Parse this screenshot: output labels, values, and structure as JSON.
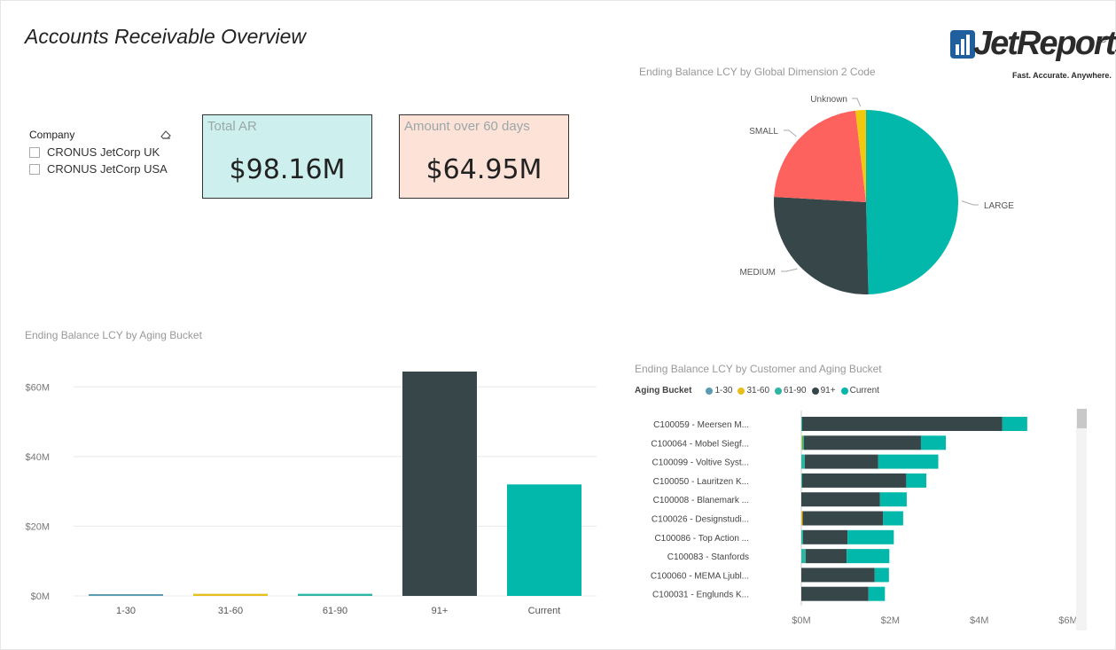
{
  "page": {
    "title": "Accounts Receivable Overview"
  },
  "logo": {
    "name": "JetReports",
    "tagline": "Fast. Accurate. Anywhere.",
    "reg": "®"
  },
  "slicer": {
    "title": "Company",
    "items": [
      "CRONUS JetCorp UK",
      "CRONUS JetCorp USA"
    ]
  },
  "cards": [
    {
      "label": "Total AR",
      "value": "$98.16M",
      "color": "#cdf0ee"
    },
    {
      "label": "Amount over 60 days",
      "value": "$64.95M",
      "color": "#fde2d7"
    }
  ],
  "colors": {
    "b1_30": "#5b9bb3",
    "b31_60": "#e6be1e",
    "b61_90": "#2fb5a4",
    "b91": "#374649",
    "current": "#01b8aa",
    "small": "#fd625e"
  },
  "chart_data": [
    {
      "type": "pie",
      "title": "Ending Balance LCY by Global Dimension 2 Code",
      "slices": [
        {
          "label": "LARGE",
          "value": 48.6,
          "color": "#01b8aa"
        },
        {
          "label": "MEDIUM",
          "value": 25.8,
          "color": "#374649"
        },
        {
          "label": "SMALL",
          "value": 21.8,
          "color": "#fd625e"
        },
        {
          "label": "Unknown",
          "value": 1.8,
          "color": "#f2c80f"
        }
      ]
    },
    {
      "type": "bar",
      "title": "Ending Balance LCY by Aging Bucket",
      "categories": [
        "1-30",
        "31-60",
        "61-90",
        "91+",
        "Current"
      ],
      "values": [
        0.5,
        0.6,
        0.6,
        64.4,
        32.0
      ],
      "colors": [
        "#5b9bb3",
        "#e6be1e",
        "#2fb5a4",
        "#374649",
        "#01b8aa"
      ],
      "yticks": [
        "$0M",
        "$20M",
        "$40M",
        "$60M"
      ],
      "ylim": [
        0,
        70
      ],
      "grid": true
    },
    {
      "type": "bar",
      "orientation": "horizontal",
      "stacked": true,
      "title": "Ending Balance LCY by Customer and Aging Bucket",
      "legend_title": "Aging Bucket",
      "series_names": [
        "1-30",
        "31-60",
        "61-90",
        "91+",
        "Current"
      ],
      "series_colors": [
        "#5b9bb3",
        "#e6be1e",
        "#2fb5a4",
        "#374649",
        "#01b8aa"
      ],
      "categories": [
        "C100059 - Meersen M...",
        "C100064 - Mobel Siegf...",
        "C100099 - Voltive Syst...",
        "C100050 - Lauritzen K...",
        "C100008 - Blanemark ...",
        "C100026 - Designstudi...",
        "C100086 - Top Action ...",
        "C100083 - Stanfords",
        "C100060 - MEMA Ljubl...",
        "C100031 - Englunds K..."
      ],
      "rows": [
        [
          0.0,
          0.0,
          0.02,
          4.5,
          0.56
        ],
        [
          0.0,
          0.02,
          0.04,
          2.63,
          0.56
        ],
        [
          0.0,
          0.0,
          0.08,
          1.65,
          1.35
        ],
        [
          0.0,
          0.0,
          0.02,
          2.34,
          0.45
        ],
        [
          0.0,
          0.0,
          0.0,
          1.77,
          0.6
        ],
        [
          0.0,
          0.03,
          0.0,
          1.81,
          0.45
        ],
        [
          0.0,
          0.0,
          0.04,
          1.0,
          1.04
        ],
        [
          0.0,
          0.0,
          0.1,
          0.92,
          0.96
        ],
        [
          0.0,
          0.0,
          0.0,
          1.65,
          0.32
        ],
        [
          0.0,
          0.0,
          0.0,
          1.51,
          0.37
        ]
      ],
      "xticks": [
        "$0M",
        "$2M",
        "$4M",
        "$6M"
      ],
      "xlim": [
        0,
        6
      ]
    }
  ]
}
